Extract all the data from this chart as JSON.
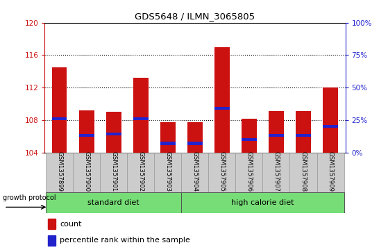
{
  "title": "GDS5648 / ILMN_3065805",
  "samples": [
    "GSM1357899",
    "GSM1357900",
    "GSM1357901",
    "GSM1357902",
    "GSM1357903",
    "GSM1357904",
    "GSM1357905",
    "GSM1357906",
    "GSM1357907",
    "GSM1357908",
    "GSM1357909"
  ],
  "count_values": [
    114.5,
    109.2,
    109.0,
    113.2,
    107.7,
    107.7,
    117.0,
    108.2,
    109.1,
    109.1,
    112.0
  ],
  "percentile_values": [
    26,
    13,
    14,
    26,
    7,
    7,
    34,
    10,
    13,
    13,
    20
  ],
  "ymin": 104,
  "ymax": 120,
  "yright_min": 0,
  "yright_max": 100,
  "yticks_left": [
    104,
    108,
    112,
    116,
    120
  ],
  "yticks_right": [
    0,
    25,
    50,
    75,
    100
  ],
  "ytick_labels_right": [
    "0%",
    "25%",
    "50%",
    "75%",
    "100%"
  ],
  "bar_color": "#CC1111",
  "percentile_color": "#2222CC",
  "bar_width": 0.55,
  "standard_diet_count": 5,
  "high_calorie_diet_count": 6,
  "diet_label_standard": "standard diet",
  "diet_label_high": "high calorie diet",
  "growth_protocol_label": "growth protocol",
  "legend_count_label": "count",
  "legend_percentile_label": "percentile rank within the sample",
  "title_color": "#000000",
  "tick_color_left": "#CC1111",
  "tick_color_right": "#2222CC",
  "label_bg_color": "#cccccc",
  "label_edge_color": "#999999",
  "diet_bg_color": "#77dd77",
  "diet_edge_color": "#555555"
}
